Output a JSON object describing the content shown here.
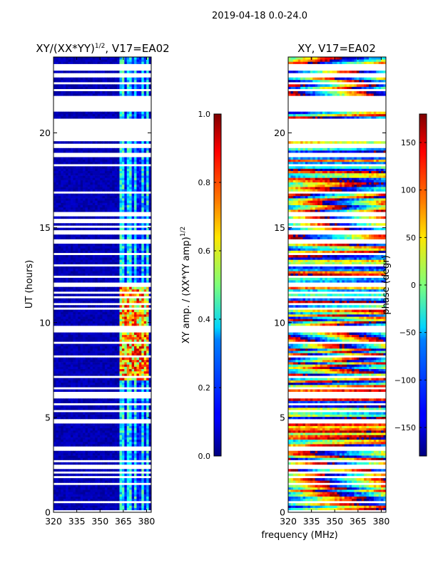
{
  "suptitle": "2019-04-18 0.0-24.0",
  "colors": {
    "background": "#ffffff",
    "gap": "#ffffff",
    "amp_base": "#00008b",
    "frame": "#000000"
  },
  "chart_data": [
    {
      "type": "heatmap",
      "title_text": "XY/(XX*YY)",
      "title_exponent": "1/2",
      "title_suffix": ", V17=EA02",
      "xlabel": "",
      "ylabel": "UT (hours)",
      "xlim": [
        320,
        383
      ],
      "ylim": [
        0,
        24
      ],
      "xticks": [
        "320",
        "335",
        "350",
        "365",
        "380"
      ],
      "xtick_values": [
        320,
        335,
        350,
        365,
        380
      ],
      "yticks": [
        "0",
        "5",
        "10",
        "15",
        "20"
      ],
      "ytick_values": [
        0,
        5,
        10,
        15,
        20
      ],
      "colorbar": {
        "label_text": "XY amp. / (XX*YY amp)",
        "label_exponent": "1/2",
        "range": [
          0.0,
          1.0
        ],
        "ticks": [
          "0.0",
          "0.2",
          "0.4",
          "0.6",
          "0.8",
          "1.0"
        ],
        "tick_values": [
          0.0,
          0.2,
          0.4,
          0.6,
          0.8,
          1.0
        ]
      },
      "data_gaps_hours": [
        [
          19.6,
          20.8
        ],
        [
          21.1,
          22.0
        ],
        [
          23.3,
          23.6
        ]
      ],
      "rfi_channels_mhz": [
        [
          363,
          366
        ],
        [
          368,
          370
        ],
        [
          372,
          374
        ],
        [
          376,
          378
        ],
        [
          380,
          381
        ]
      ],
      "high_amplitude_window_hours": [
        7.0,
        12.0
      ]
    },
    {
      "type": "heatmap",
      "title": "XY, V17=EA02",
      "xlabel": "frequency (MHz)",
      "ylabel": "",
      "xlim": [
        320,
        383
      ],
      "ylim": [
        0,
        24
      ],
      "xticks": [
        "320",
        "335",
        "350",
        "365",
        "380"
      ],
      "xtick_values": [
        320,
        335,
        350,
        365,
        380
      ],
      "yticks": [
        "0",
        "5",
        "10",
        "15",
        "20"
      ],
      "ytick_values": [
        0,
        5,
        10,
        15,
        20
      ],
      "colorbar": {
        "label": "phase (degr)",
        "range": [
          -180,
          180
        ],
        "ticks": [
          "−150",
          "−100",
          "−50",
          "0",
          "50",
          "100",
          "150"
        ],
        "tick_values": [
          -150,
          -100,
          -50,
          0,
          50,
          100,
          150
        ]
      },
      "data_gaps_hours": [
        [
          19.6,
          20.8
        ],
        [
          21.1,
          22.0
        ],
        [
          23.3,
          23.6
        ]
      ]
    }
  ]
}
